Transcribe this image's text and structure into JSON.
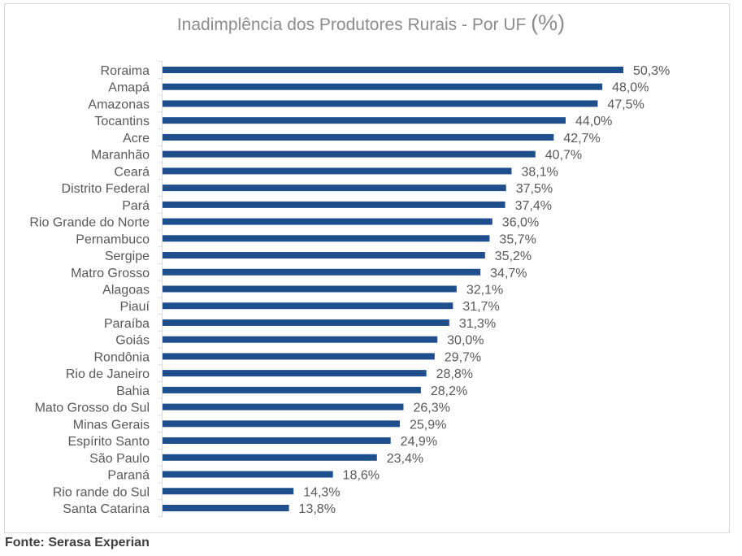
{
  "chart_data": {
    "type": "bar",
    "orientation": "horizontal",
    "title": "Inadimplência dos Produtores Rurais - Por UF",
    "title_unit": "(%)",
    "categories": [
      "Roraima",
      "Amapá",
      "Amazonas",
      "Tocantins",
      "Acre",
      "Maranhão",
      "Ceará",
      "Distrito Federal",
      "Pará",
      "Rio Grande do Norte",
      "Pernambuco",
      "Sergipe",
      "Matro Grosso",
      "Alagoas",
      "Piauí",
      "Paraíba",
      "Goiás",
      "Rondônia",
      "Rio de Janeiro",
      "Bahia",
      "Mato Grosso do Sul",
      "Minas Gerais",
      "Espírito Santo",
      "São Paulo",
      "Paraná",
      "Rio rande do Sul",
      "Santa Catarina"
    ],
    "values": [
      50.3,
      48.0,
      47.5,
      44.0,
      42.7,
      40.7,
      38.1,
      37.5,
      37.4,
      36.0,
      35.7,
      35.2,
      34.7,
      32.1,
      31.7,
      31.3,
      30.0,
      29.7,
      28.8,
      28.2,
      26.3,
      25.9,
      24.9,
      23.4,
      18.6,
      14.3,
      13.8
    ],
    "labels": [
      "50,3%",
      "48,0%",
      "47,5%",
      "44,0%",
      "42,7%",
      "40,7%",
      "38,1%",
      "37,5%",
      "37,4%",
      "36,0%",
      "35,7%",
      "35,2%",
      "34,7%",
      "32,1%",
      "31,7%",
      "31,3%",
      "30,0%",
      "29,7%",
      "28,8%",
      "28,2%",
      "26,3%",
      "25,9%",
      "24,9%",
      "23,4%",
      "18,6%",
      "14,3%",
      "13,8%"
    ],
    "xlim": [
      0,
      50.3
    ],
    "xlabel": "",
    "ylabel": "",
    "grid": false,
    "legend": "none",
    "bar_color": "#1f4e8c",
    "label_color": "#595959",
    "axis_color": "#d9d9d9"
  },
  "source": "Fonte: Serasa Experian"
}
